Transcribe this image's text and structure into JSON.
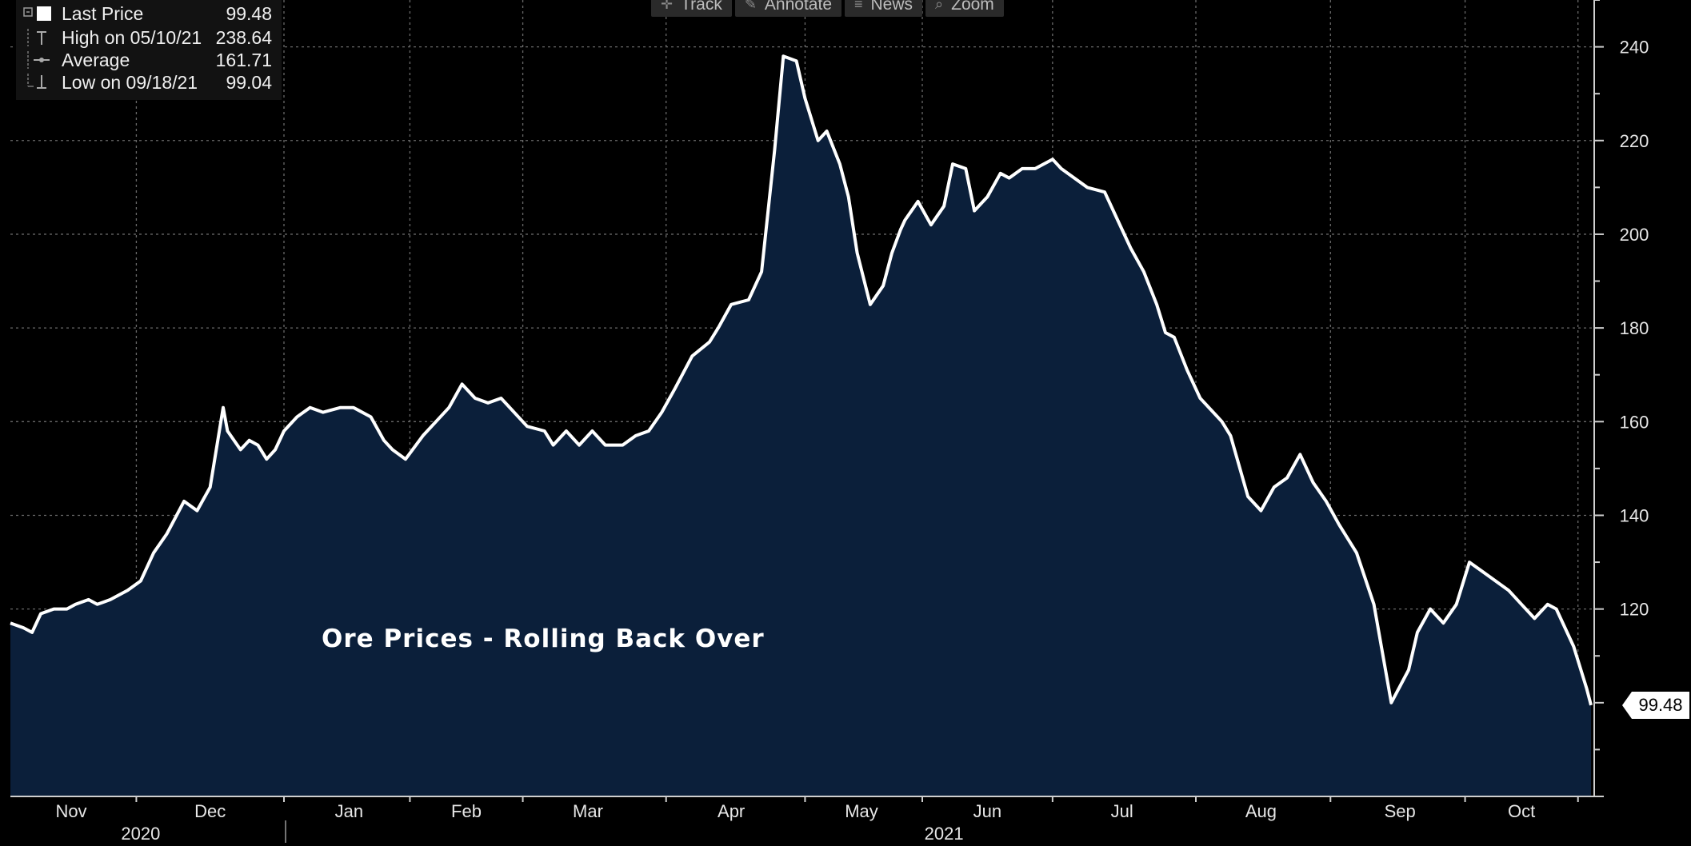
{
  "toolbar": {
    "items": [
      {
        "label": "Track",
        "icon": "crosshair-icon"
      },
      {
        "label": "Annotate",
        "icon": "pencil-icon"
      },
      {
        "label": "News",
        "icon": "list-icon"
      },
      {
        "label": "Zoom",
        "icon": "magnifier-icon"
      }
    ]
  },
  "legend": {
    "last_label": "Last Price",
    "last_value": "99.48",
    "high_label": "High on 05/10/21",
    "high_value": "238.64",
    "avg_label": "Average",
    "avg_value": "161.71",
    "low_label": "Low on 09/18/21",
    "low_value": "99.04"
  },
  "annotation": "Ore Prices - Rolling Back Over",
  "last_price_tag": "99.48",
  "colors": {
    "background": "#000000",
    "area_fill": "#0b1f3a",
    "line": "#ffffff",
    "grid": "#6a6a6a"
  },
  "chart_data": {
    "type": "area",
    "title": "",
    "ylim": [
      80,
      250
    ],
    "yticks": [
      120,
      140,
      160,
      180,
      200,
      220,
      240
    ],
    "ytick_labels": [
      "120",
      "140",
      "160",
      "180",
      "200",
      "220",
      "240"
    ],
    "xlim": [
      0,
      364
    ],
    "months": [
      {
        "label": "Nov",
        "x": 14
      },
      {
        "label": "Dec",
        "x": 46
      },
      {
        "label": "Jan",
        "x": 78
      },
      {
        "label": "Feb",
        "x": 105
      },
      {
        "label": "Mar",
        "x": 133
      },
      {
        "label": "Apr",
        "x": 166
      },
      {
        "label": "May",
        "x": 196
      },
      {
        "label": "Jun",
        "x": 225
      },
      {
        "label": "Jul",
        "x": 256
      },
      {
        "label": "Aug",
        "x": 288
      },
      {
        "label": "Sep",
        "x": 320
      },
      {
        "label": "Oct",
        "x": 348
      }
    ],
    "month_boundaries": [
      29,
      63,
      92,
      118,
      151,
      183,
      210,
      240,
      273,
      304,
      335,
      361
    ],
    "years": [
      {
        "label": "2020",
        "x": 30
      },
      {
        "label": "2021",
        "x": 215
      }
    ],
    "year_boundaries": [
      63
    ],
    "series": [
      {
        "name": "Last Price",
        "x": [
          0,
          3,
          5,
          7,
          10,
          13,
          15,
          18,
          20,
          23,
          27,
          30,
          33,
          36,
          40,
          43,
          46,
          49,
          50,
          53,
          55,
          57,
          59,
          61,
          63,
          66,
          69,
          72,
          76,
          79,
          83,
          86,
          88,
          91,
          95,
          98,
          101,
          104,
          107,
          110,
          113,
          115,
          119,
          123,
          125,
          128,
          131,
          134,
          137,
          141,
          144,
          147,
          150,
          153,
          157,
          161,
          163,
          166,
          170,
          173,
          176,
          178,
          181,
          183,
          186,
          188,
          191,
          193,
          195,
          198,
          201,
          203,
          205,
          206,
          209,
          212,
          215,
          217,
          220,
          222,
          225,
          228,
          230,
          233,
          236,
          240,
          242,
          245,
          248,
          252,
          255,
          258,
          261,
          264,
          266,
          268,
          271,
          274,
          276,
          279,
          281,
          285,
          288,
          291,
          294,
          297,
          300,
          303,
          306,
          310,
          314,
          318,
          322,
          324,
          327,
          330,
          333,
          336,
          339,
          342,
          345,
          348,
          351,
          354,
          356,
          360,
          363,
          364
        ],
        "values": [
          117,
          116,
          115,
          119,
          120,
          120,
          121,
          122,
          121,
          122,
          124,
          126,
          132,
          136,
          143,
          141,
          146,
          163,
          158,
          154,
          156,
          155,
          152,
          154,
          158,
          161,
          163,
          162,
          163,
          163,
          161,
          156,
          154,
          152,
          157,
          160,
          163,
          168,
          165,
          164,
          165,
          163,
          159,
          158,
          155,
          158,
          155,
          158,
          155,
          155,
          157,
          158,
          162,
          167,
          174,
          177,
          180,
          185,
          186,
          192,
          218,
          238,
          237,
          229,
          220,
          222,
          215,
          208,
          196,
          185,
          189,
          196,
          201,
          203,
          207,
          202,
          206,
          215,
          214,
          205,
          208,
          213,
          212,
          214,
          214,
          216,
          214,
          212,
          210,
          209,
          203,
          197,
          192,
          185,
          179,
          178,
          171,
          165,
          163,
          160,
          157,
          144,
          141,
          146,
          148,
          153,
          147,
          143,
          138,
          132,
          121,
          100,
          107,
          115,
          120,
          117,
          121,
          130,
          128,
          126,
          124,
          121,
          118,
          121,
          120,
          112,
          103,
          99.48
        ]
      }
    ]
  }
}
